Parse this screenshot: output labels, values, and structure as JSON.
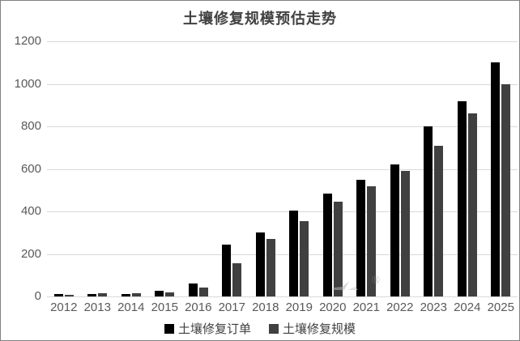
{
  "title": "土壤修复规模预估走势",
  "watermark": "®",
  "colors": {
    "series1": "#000000",
    "series2": "#404040",
    "gridline": "#d9d9d9",
    "axis_label": "#595959",
    "title_text": "#404040",
    "frame_border": "#808080",
    "watermark_gray": "#b3b3b3"
  },
  "chart_data": {
    "type": "bar",
    "title": "土壤修复规模预估走势",
    "categories": [
      "2012",
      "2013",
      "2014",
      "2015",
      "2016",
      "2017",
      "2018",
      "2019",
      "2020",
      "2021",
      "2022",
      "2023",
      "2024",
      "2025"
    ],
    "series": [
      {
        "name": "土壤修复订单",
        "color": "#000000",
        "values": [
          10,
          13,
          11,
          25,
          60,
          245,
          300,
          405,
          485,
          550,
          620,
          800,
          920,
          1100
        ]
      },
      {
        "name": "土壤修复规模",
        "color": "#404040",
        "values": [
          8,
          14,
          15,
          18,
          42,
          155,
          270,
          355,
          445,
          520,
          590,
          710,
          860,
          1000
        ]
      }
    ],
    "xlabel": "",
    "ylabel": "",
    "ylim": [
      0,
      1200
    ],
    "yticks": [
      0,
      200,
      400,
      600,
      800,
      1000,
      1200
    ],
    "grid": true,
    "legend_position": "bottom"
  }
}
